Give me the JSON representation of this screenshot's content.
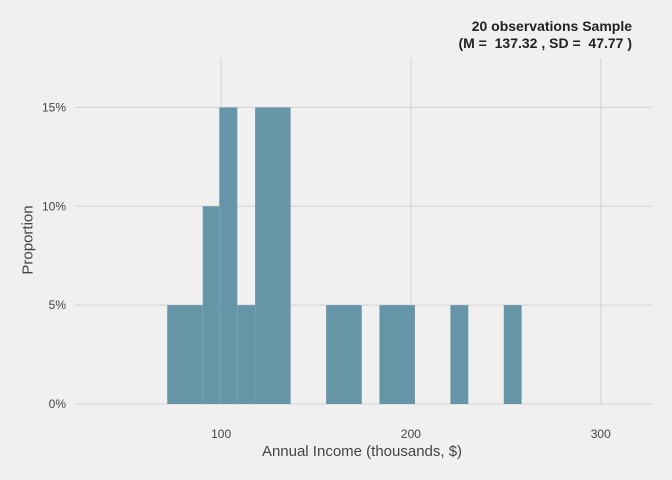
{
  "chart_data": {
    "type": "bar",
    "title_line1": "20 observations Sample",
    "title_line2": "(M =  137.32 , SD =  47.77 )",
    "xlabel": "Annual Income (thousands, $)",
    "ylabel": "Proportion",
    "xlim": [
      23,
      327
    ],
    "ylim": [
      0,
      0.175
    ],
    "x_ticks": [
      100,
      200,
      300
    ],
    "x_tick_labels": [
      "100",
      "200",
      "300"
    ],
    "y_ticks": [
      0,
      0.05,
      0.1,
      0.15
    ],
    "y_tick_labels": [
      "0%",
      "5%",
      "10%",
      "15%"
    ],
    "grid": true,
    "bar_color": "#6795a8",
    "bins": [
      {
        "start": 71.6,
        "end": 90.3,
        "value": 0.05
      },
      {
        "start": 90.3,
        "end": 99.0,
        "value": 0.1
      },
      {
        "start": 99.0,
        "end": 108.5,
        "value": 0.15
      },
      {
        "start": 108.5,
        "end": 117.9,
        "value": 0.05
      },
      {
        "start": 117.9,
        "end": 136.6,
        "value": 0.15
      },
      {
        "start": 155.3,
        "end": 174.1,
        "value": 0.05
      },
      {
        "start": 183.4,
        "end": 202.1,
        "value": 0.05
      },
      {
        "start": 220.8,
        "end": 230.2,
        "value": 0.05
      },
      {
        "start": 248.9,
        "end": 258.3,
        "value": 0.05
      }
    ]
  }
}
